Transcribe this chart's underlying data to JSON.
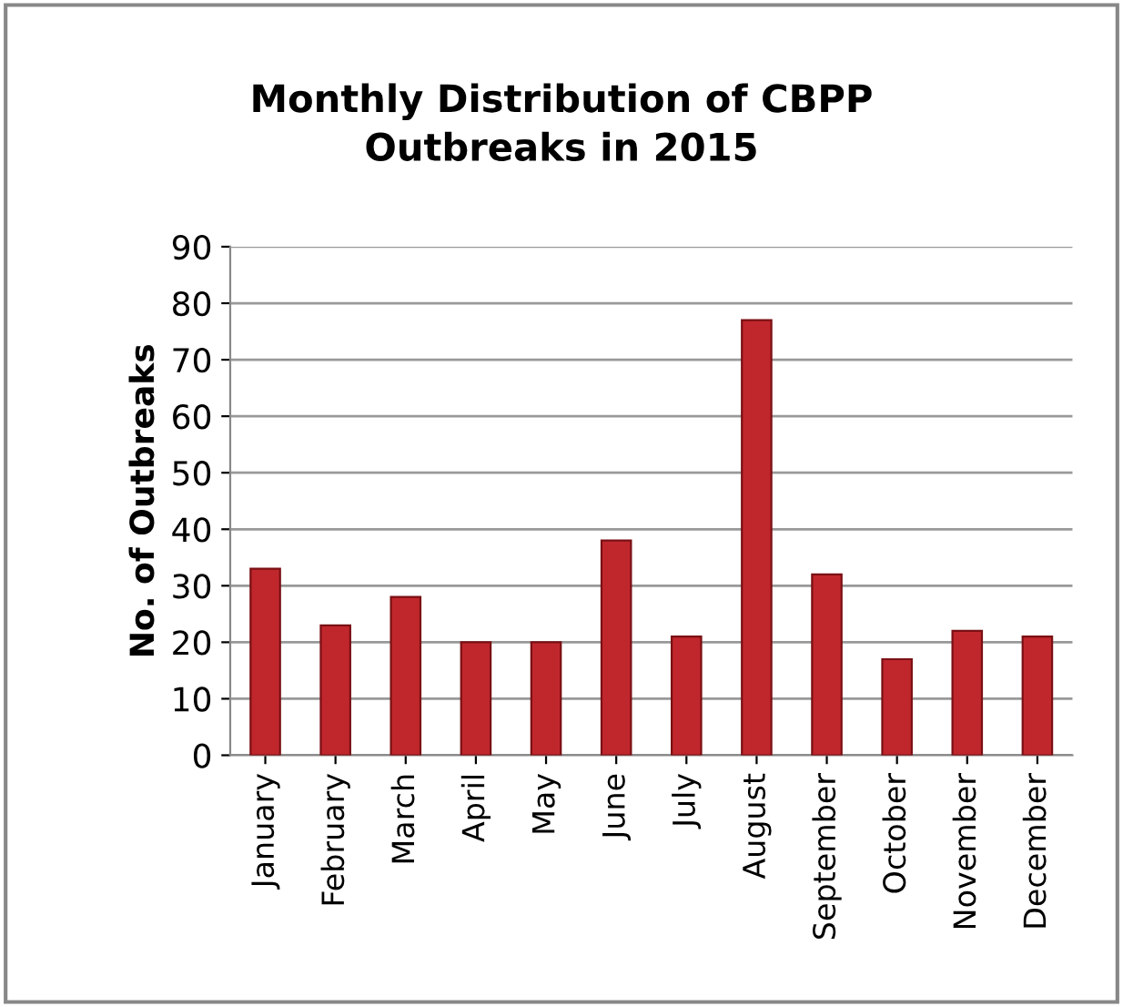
{
  "chart_data": {
    "type": "bar",
    "title": "Monthly Distribution of CBPP\nOutbreaks in 2015",
    "ylabel": "No. of Outbreaks",
    "categories": [
      "January",
      "February",
      "March",
      "April",
      "May",
      "June",
      "July",
      "August",
      "September",
      "October",
      "November",
      "December"
    ],
    "values": [
      33,
      23,
      28,
      20,
      20,
      38,
      21,
      77,
      32,
      17,
      22,
      21
    ],
    "color": "#c0272d",
    "ylim": [
      0,
      90
    ],
    "yticks": [
      0,
      10,
      20,
      30,
      40,
      50,
      60,
      70,
      80,
      90
    ],
    "grid": "y"
  }
}
